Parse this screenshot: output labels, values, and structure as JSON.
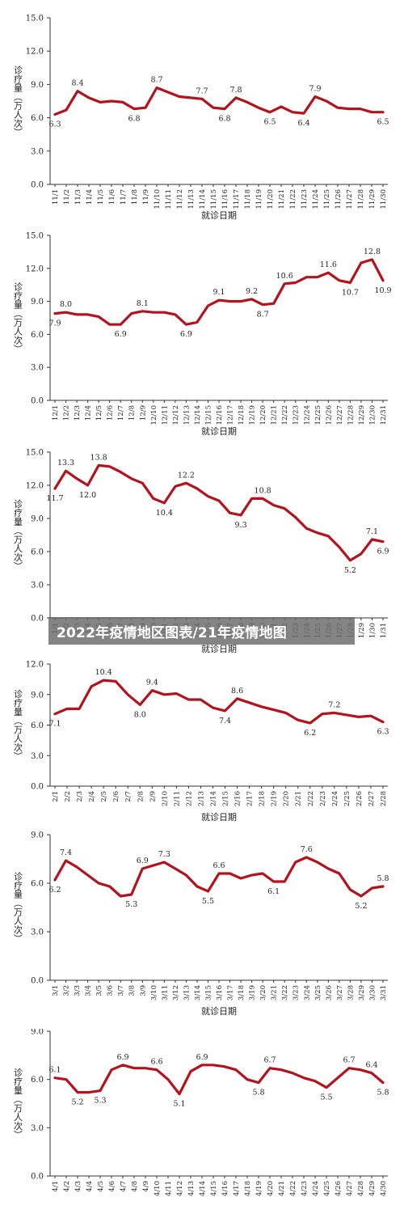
{
  "banner": {
    "text": "2022年疫情地区图表/21年疫情地图"
  },
  "style": {
    "line_color": "#b5121b",
    "axis_color": "#333333"
  },
  "chart_data": [
    {
      "type": "line",
      "ylabel": "诊疗量（万人次）",
      "xlabel": "就诊日期",
      "ylim": [
        0,
        15
      ],
      "yticks": [
        "0.0",
        "3.0",
        "6.0",
        "9.0",
        "12.0",
        "15.0"
      ],
      "x": [
        "11/1",
        "11/2",
        "11/3",
        "11/4",
        "11/5",
        "11/6",
        "11/7",
        "11/8",
        "11/9",
        "11/10",
        "11/11",
        "11/12",
        "11/13",
        "11/14",
        "11/15",
        "11/16",
        "11/17",
        "11/18",
        "11/19",
        "11/20",
        "11/21",
        "11/22",
        "11/23",
        "11/24",
        "11/25",
        "11/26",
        "11/27",
        "11/28",
        "11/29",
        "11/30"
      ],
      "values": [
        6.3,
        6.7,
        8.4,
        7.8,
        7.4,
        7.5,
        7.4,
        6.8,
        6.9,
        8.7,
        8.3,
        7.9,
        7.8,
        7.7,
        6.9,
        6.8,
        7.8,
        7.4,
        6.9,
        6.5,
        7.0,
        6.5,
        6.4,
        7.9,
        7.5,
        6.9,
        6.8,
        6.8,
        6.5,
        6.5
      ],
      "labels": [
        {
          "i": 0,
          "text": "6.3",
          "pos": "below"
        },
        {
          "i": 2,
          "text": "8.4",
          "pos": "above"
        },
        {
          "i": 7,
          "text": "6.8",
          "pos": "below"
        },
        {
          "i": 9,
          "text": "8.7",
          "pos": "above"
        },
        {
          "i": 13,
          "text": "7.7",
          "pos": "above"
        },
        {
          "i": 15,
          "text": "6.8",
          "pos": "below"
        },
        {
          "i": 16,
          "text": "7.8",
          "pos": "above"
        },
        {
          "i": 19,
          "text": "6.5",
          "pos": "below"
        },
        {
          "i": 22,
          "text": "6.4",
          "pos": "below"
        },
        {
          "i": 23,
          "text": "7.9",
          "pos": "above"
        },
        {
          "i": 29,
          "text": "6.5",
          "pos": "below"
        }
      ]
    },
    {
      "type": "line",
      "ylabel": "诊疗量（万人次）",
      "xlabel": "就诊日期",
      "ylim": [
        0,
        15
      ],
      "yticks": [
        "0.0",
        "3.0",
        "6.0",
        "9.0",
        "12.0",
        "15.0"
      ],
      "x": [
        "12/1",
        "12/2",
        "12/3",
        "12/4",
        "12/5",
        "12/6",
        "12/7",
        "12/8",
        "12/9",
        "12/10",
        "12/11",
        "12/12",
        "12/13",
        "12/14",
        "12/15",
        "12/16",
        "12/17",
        "12/18",
        "12/19",
        "12/20",
        "12/21",
        "12/22",
        "12/23",
        "12/24",
        "12/25",
        "12/26",
        "12/27",
        "12/28",
        "12/29",
        "12/30",
        "12/31"
      ],
      "values": [
        7.9,
        8.0,
        7.8,
        7.8,
        7.6,
        6.9,
        6.9,
        7.9,
        8.1,
        8.0,
        8.0,
        7.8,
        6.9,
        7.1,
        8.6,
        9.1,
        9.0,
        9.0,
        9.2,
        8.7,
        8.8,
        10.6,
        10.7,
        11.2,
        11.2,
        11.6,
        10.9,
        10.7,
        12.5,
        12.8,
        10.9
      ],
      "labels": [
        {
          "i": 0,
          "text": "7.9",
          "pos": "below"
        },
        {
          "i": 1,
          "text": "8.0",
          "pos": "above"
        },
        {
          "i": 6,
          "text": "6.9",
          "pos": "below"
        },
        {
          "i": 8,
          "text": "8.1",
          "pos": "above"
        },
        {
          "i": 12,
          "text": "6.9",
          "pos": "below"
        },
        {
          "i": 15,
          "text": "9.1",
          "pos": "above"
        },
        {
          "i": 18,
          "text": "9.2",
          "pos": "above"
        },
        {
          "i": 19,
          "text": "8.7",
          "pos": "below"
        },
        {
          "i": 21,
          "text": "10.6",
          "pos": "above"
        },
        {
          "i": 25,
          "text": "11.6",
          "pos": "above"
        },
        {
          "i": 27,
          "text": "10.7",
          "pos": "below"
        },
        {
          "i": 29,
          "text": "12.8",
          "pos": "above"
        },
        {
          "i": 30,
          "text": "10.9",
          "pos": "below"
        }
      ]
    },
    {
      "type": "line",
      "ylabel": "诊疗量（万人次）",
      "xlabel": "就诊日期",
      "ylim": [
        0,
        15
      ],
      "yticks": [
        "0.0",
        "3.0",
        "6.0",
        "9.0",
        "12.0",
        "15.0"
      ],
      "x": [
        "1/1",
        "1/2",
        "1/3",
        "1/4",
        "1/5",
        "1/6",
        "1/7",
        "1/8",
        "1/9",
        "1/10",
        "1/11",
        "1/12",
        "1/13",
        "1/14",
        "1/15",
        "1/16",
        "1/17",
        "1/18",
        "1/19",
        "1/20",
        "1/21",
        "1/22",
        "1/23",
        "1/24",
        "1/25",
        "1/26",
        "1/27",
        "1/28",
        "1/29",
        "1/30",
        "1/31"
      ],
      "values": [
        11.7,
        13.3,
        12.6,
        12.0,
        13.8,
        13.7,
        13.2,
        12.6,
        12.2,
        10.8,
        10.4,
        11.9,
        12.2,
        11.7,
        11.0,
        10.6,
        9.5,
        9.3,
        10.8,
        10.8,
        10.2,
        9.9,
        9.1,
        8.1,
        7.7,
        7.4,
        6.4,
        5.2,
        5.8,
        7.1,
        6.9
      ],
      "labels": [
        {
          "i": 0,
          "text": "11.7",
          "pos": "below"
        },
        {
          "i": 1,
          "text": "13.3",
          "pos": "above"
        },
        {
          "i": 3,
          "text": "12.0",
          "pos": "below"
        },
        {
          "i": 4,
          "text": "13.8",
          "pos": "above"
        },
        {
          "i": 10,
          "text": "10.4",
          "pos": "below"
        },
        {
          "i": 12,
          "text": "12.2",
          "pos": "above"
        },
        {
          "i": 17,
          "text": "9.3",
          "pos": "below"
        },
        {
          "i": 19,
          "text": "10.8",
          "pos": "above"
        },
        {
          "i": 27,
          "text": "5.2",
          "pos": "below"
        },
        {
          "i": 29,
          "text": "7.1",
          "pos": "above"
        },
        {
          "i": 30,
          "text": "6.9",
          "pos": "below"
        }
      ]
    },
    {
      "type": "line",
      "ylabel": "诊疗量（万人次）",
      "xlabel": "就诊日期",
      "ylim": [
        0,
        12
      ],
      "yticks": [
        "0.0",
        "3.0",
        "6.0",
        "9.0",
        "12.0"
      ],
      "x": [
        "2/1",
        "2/2",
        "2/3",
        "2/4",
        "2/5",
        "2/6",
        "2/7",
        "2/8",
        "2/9",
        "2/10",
        "2/11",
        "2/12",
        "2/13",
        "2/14",
        "2/15",
        "2/16",
        "2/17",
        "2/18",
        "2/19",
        "2/20",
        "2/21",
        "2/22",
        "2/23",
        "2/24",
        "2/25",
        "2/26",
        "2/27",
        "2/28"
      ],
      "values": [
        7.1,
        7.6,
        7.6,
        9.8,
        10.4,
        10.3,
        9.0,
        8.0,
        9.4,
        9.0,
        9.1,
        8.5,
        8.5,
        7.7,
        7.4,
        8.6,
        8.2,
        7.8,
        7.5,
        7.2,
        6.5,
        6.2,
        7.1,
        7.2,
        7.0,
        6.8,
        6.9,
        6.3
      ],
      "labels": [
        {
          "i": 0,
          "text": "7.1",
          "pos": "below"
        },
        {
          "i": 4,
          "text": "10.4",
          "pos": "above"
        },
        {
          "i": 7,
          "text": "8.0",
          "pos": "below"
        },
        {
          "i": 8,
          "text": "9.4",
          "pos": "above"
        },
        {
          "i": 14,
          "text": "7.4",
          "pos": "below"
        },
        {
          "i": 15,
          "text": "8.6",
          "pos": "above"
        },
        {
          "i": 21,
          "text": "6.2",
          "pos": "below"
        },
        {
          "i": 23,
          "text": "7.2",
          "pos": "above"
        },
        {
          "i": 27,
          "text": "6.3",
          "pos": "below"
        }
      ]
    },
    {
      "type": "line",
      "ylabel": "诊疗量（万人次）",
      "xlabel": "就诊日期",
      "ylim": [
        0,
        9
      ],
      "yticks": [
        "0.0",
        "3.0",
        "6.0",
        "9.0"
      ],
      "x": [
        "3/1",
        "3/2",
        "3/3",
        "3/4",
        "3/5",
        "3/6",
        "3/7",
        "3/8",
        "3/9",
        "3/10",
        "3/11",
        "3/12",
        "3/13",
        "3/14",
        "3/15",
        "3/16",
        "3/17",
        "3/18",
        "3/19",
        "3/20",
        "3/21",
        "3/22",
        "3/23",
        "3/24",
        "3/25",
        "3/26",
        "3/27",
        "3/28",
        "3/29",
        "3/30",
        "3/31"
      ],
      "values": [
        6.2,
        7.4,
        7.0,
        6.5,
        6.0,
        5.8,
        5.2,
        5.3,
        6.9,
        7.1,
        7.3,
        6.9,
        6.5,
        5.8,
        5.5,
        6.6,
        6.6,
        6.3,
        6.5,
        6.6,
        6.1,
        6.1,
        7.3,
        7.6,
        7.3,
        6.9,
        6.6,
        5.6,
        5.2,
        5.7,
        5.8
      ],
      "labels": [
        {
          "i": 0,
          "text": "6.2",
          "pos": "below"
        },
        {
          "i": 1,
          "text": "7.4",
          "pos": "above"
        },
        {
          "i": 7,
          "text": "5.3",
          "pos": "below"
        },
        {
          "i": 8,
          "text": "6.9",
          "pos": "above"
        },
        {
          "i": 10,
          "text": "7.3",
          "pos": "above"
        },
        {
          "i": 14,
          "text": "5.5",
          "pos": "below"
        },
        {
          "i": 15,
          "text": "6.6",
          "pos": "above"
        },
        {
          "i": 20,
          "text": "6.1",
          "pos": "below"
        },
        {
          "i": 23,
          "text": "7.6",
          "pos": "above"
        },
        {
          "i": 28,
          "text": "5.2",
          "pos": "below"
        },
        {
          "i": 30,
          "text": "5.8",
          "pos": "above"
        }
      ]
    },
    {
      "type": "line",
      "ylabel": "诊疗量（万人次）",
      "xlabel": "",
      "ylim": [
        0,
        9
      ],
      "yticks": [
        "0.0",
        "3.0",
        "6.0",
        "9.0"
      ],
      "x": [
        "4/1",
        "4/2",
        "4/3",
        "4/4",
        "4/5",
        "4/6",
        "4/7",
        "4/8",
        "4/9",
        "4/10",
        "4/11",
        "4/12",
        "4/13",
        "4/14",
        "4/15",
        "4/16",
        "4/17",
        "4/18",
        "4/19",
        "4/20",
        "4/21",
        "4/22",
        "4/23",
        "4/24",
        "4/25",
        "4/26",
        "4/27",
        "4/28",
        "4/29",
        "4/30"
      ],
      "values": [
        6.1,
        6.0,
        5.2,
        5.2,
        5.3,
        6.6,
        6.9,
        6.7,
        6.7,
        6.6,
        6.0,
        5.1,
        6.5,
        6.9,
        6.9,
        6.8,
        6.6,
        6.0,
        5.8,
        6.7,
        6.6,
        6.4,
        6.1,
        5.9,
        5.5,
        6.1,
        6.7,
        6.6,
        6.4,
        5.8
      ],
      "labels": [
        {
          "i": 0,
          "text": "6.1",
          "pos": "above"
        },
        {
          "i": 2,
          "text": "5.2",
          "pos": "below"
        },
        {
          "i": 4,
          "text": "5.3",
          "pos": "below"
        },
        {
          "i": 6,
          "text": "6.9",
          "pos": "above"
        },
        {
          "i": 9,
          "text": "6.6",
          "pos": "above"
        },
        {
          "i": 11,
          "text": "5.1",
          "pos": "below"
        },
        {
          "i": 13,
          "text": "6.9",
          "pos": "above"
        },
        {
          "i": 18,
          "text": "5.8",
          "pos": "below"
        },
        {
          "i": 19,
          "text": "6.7",
          "pos": "above"
        },
        {
          "i": 24,
          "text": "5.5",
          "pos": "below"
        },
        {
          "i": 26,
          "text": "6.7",
          "pos": "above"
        },
        {
          "i": 28,
          "text": "6.4",
          "pos": "above"
        },
        {
          "i": 29,
          "text": "5.8",
          "pos": "below"
        }
      ]
    }
  ]
}
